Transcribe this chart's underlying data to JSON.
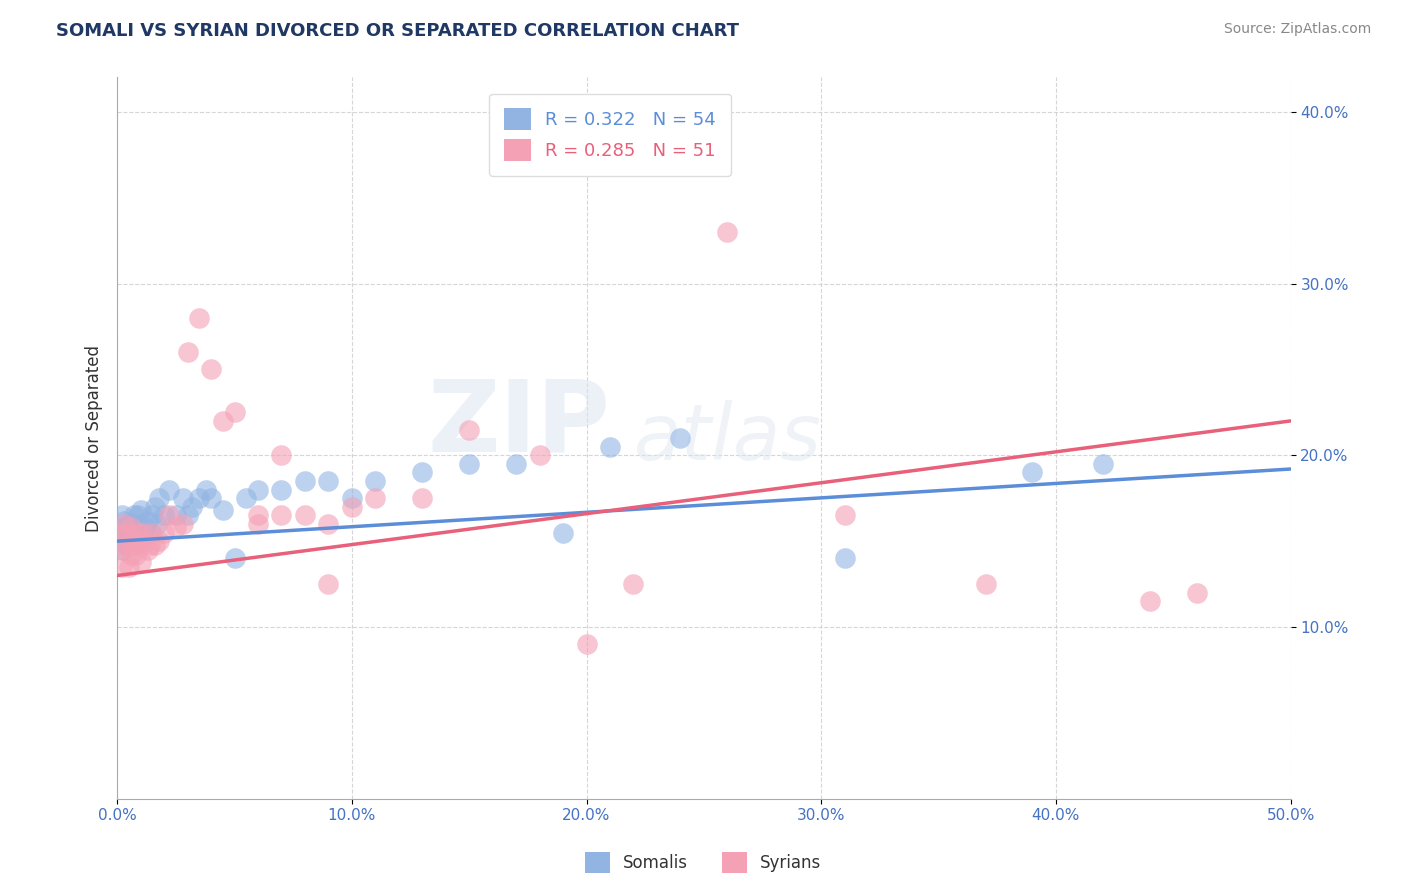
{
  "title": "SOMALI VS SYRIAN DIVORCED OR SEPARATED CORRELATION CHART",
  "source": "Source: ZipAtlas.com",
  "ylabel": "Divorced or Separated",
  "xlim": [
    0.0,
    0.5
  ],
  "ylim": [
    0.0,
    0.42
  ],
  "xticks": [
    0.0,
    0.1,
    0.2,
    0.3,
    0.4,
    0.5
  ],
  "yticks": [
    0.1,
    0.2,
    0.3,
    0.4
  ],
  "xticklabels": [
    "0.0%",
    "10.0%",
    "20.0%",
    "30.0%",
    "40.0%",
    "50.0%"
  ],
  "yticklabels": [
    "10.0%",
    "20.0%",
    "30.0%",
    "40.0%"
  ],
  "somali_R": 0.322,
  "somali_N": 54,
  "syrian_R": 0.285,
  "syrian_N": 51,
  "somali_color": "#92b4e3",
  "syrian_color": "#f4a0b5",
  "somali_line_color": "#5b8dd9",
  "syrian_line_color": "#e8607a",
  "background_color": "#ffffff",
  "grid_color": "#cccccc",
  "somali_x": [
    0.001,
    0.002,
    0.002,
    0.003,
    0.003,
    0.004,
    0.004,
    0.005,
    0.005,
    0.005,
    0.006,
    0.006,
    0.007,
    0.007,
    0.008,
    0.008,
    0.009,
    0.009,
    0.01,
    0.011,
    0.012,
    0.013,
    0.014,
    0.015,
    0.016,
    0.017,
    0.018,
    0.02,
    0.022,
    0.025,
    0.028,
    0.03,
    0.032,
    0.035,
    0.038,
    0.04,
    0.045,
    0.05,
    0.055,
    0.06,
    0.07,
    0.08,
    0.09,
    0.1,
    0.11,
    0.13,
    0.15,
    0.17,
    0.19,
    0.21,
    0.24,
    0.31,
    0.39,
    0.42
  ],
  "somali_y": [
    0.155,
    0.165,
    0.145,
    0.158,
    0.162,
    0.15,
    0.148,
    0.16,
    0.155,
    0.152,
    0.155,
    0.148,
    0.165,
    0.158,
    0.16,
    0.155,
    0.15,
    0.165,
    0.168,
    0.155,
    0.158,
    0.162,
    0.155,
    0.165,
    0.17,
    0.16,
    0.175,
    0.165,
    0.18,
    0.165,
    0.175,
    0.165,
    0.17,
    0.175,
    0.18,
    0.175,
    0.168,
    0.14,
    0.175,
    0.18,
    0.18,
    0.185,
    0.185,
    0.175,
    0.185,
    0.19,
    0.195,
    0.195,
    0.155,
    0.205,
    0.21,
    0.14,
    0.19,
    0.195
  ],
  "syrian_x": [
    0.001,
    0.002,
    0.002,
    0.003,
    0.003,
    0.004,
    0.005,
    0.005,
    0.006,
    0.006,
    0.007,
    0.008,
    0.008,
    0.009,
    0.01,
    0.01,
    0.011,
    0.012,
    0.013,
    0.014,
    0.015,
    0.016,
    0.018,
    0.02,
    0.022,
    0.025,
    0.028,
    0.03,
    0.035,
    0.04,
    0.045,
    0.05,
    0.06,
    0.07,
    0.08,
    0.09,
    0.1,
    0.11,
    0.13,
    0.15,
    0.18,
    0.2,
    0.22,
    0.26,
    0.31,
    0.37,
    0.44,
    0.46,
    0.06,
    0.07,
    0.09
  ],
  "syrian_y": [
    0.155,
    0.148,
    0.135,
    0.16,
    0.145,
    0.155,
    0.148,
    0.135,
    0.158,
    0.142,
    0.148,
    0.15,
    0.142,
    0.155,
    0.148,
    0.138,
    0.155,
    0.15,
    0.145,
    0.148,
    0.155,
    0.148,
    0.15,
    0.155,
    0.165,
    0.158,
    0.16,
    0.26,
    0.28,
    0.25,
    0.22,
    0.225,
    0.165,
    0.165,
    0.165,
    0.16,
    0.17,
    0.175,
    0.175,
    0.215,
    0.2,
    0.09,
    0.125,
    0.33,
    0.165,
    0.125,
    0.115,
    0.12,
    0.16,
    0.2,
    0.125
  ],
  "somali_line_start_y": 0.15,
  "somali_line_end_y": 0.192,
  "syrian_line_start_y": 0.13,
  "syrian_line_end_y": 0.22
}
